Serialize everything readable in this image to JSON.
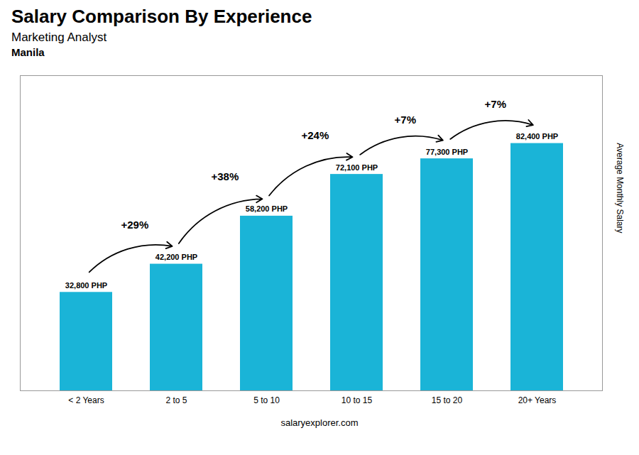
{
  "chart_data": {
    "type": "bar",
    "title": "Salary Comparison By Experience",
    "subtitle": "Marketing Analyst",
    "location": "Manila",
    "caption": "salaryexplorer.com",
    "ylabel": "Average Monthly Salary",
    "categories": [
      "< 2 Years",
      "2 to 5",
      "5 to 10",
      "10 to 15",
      "15 to 20",
      "20+ Years"
    ],
    "values": [
      32800,
      42200,
      58200,
      72100,
      77300,
      82400
    ],
    "value_labels": [
      "32,800 PHP",
      "42,200 PHP",
      "58,200 PHP",
      "72,100 PHP",
      "77,300 PHP",
      "82,400 PHP"
    ],
    "data_labels": true,
    "color": "#1ab4d7",
    "ylim": [
      0,
      105000
    ],
    "yticks": [],
    "tick_labels": "x",
    "grid": false,
    "annotations": [
      {
        "text": "+29%",
        "from": "< 2 Years",
        "to": "2 to 5"
      },
      {
        "text": "+38%",
        "from": "2 to 5",
        "to": "5 to 10"
      },
      {
        "text": "+24%",
        "from": "5 to 10",
        "to": "10 to 15"
      },
      {
        "text": "+7%",
        "from": "10 to 15",
        "to": "15 to 20"
      },
      {
        "text": "+7%",
        "from": "15 to 20",
        "to": "20+ Years"
      }
    ]
  }
}
